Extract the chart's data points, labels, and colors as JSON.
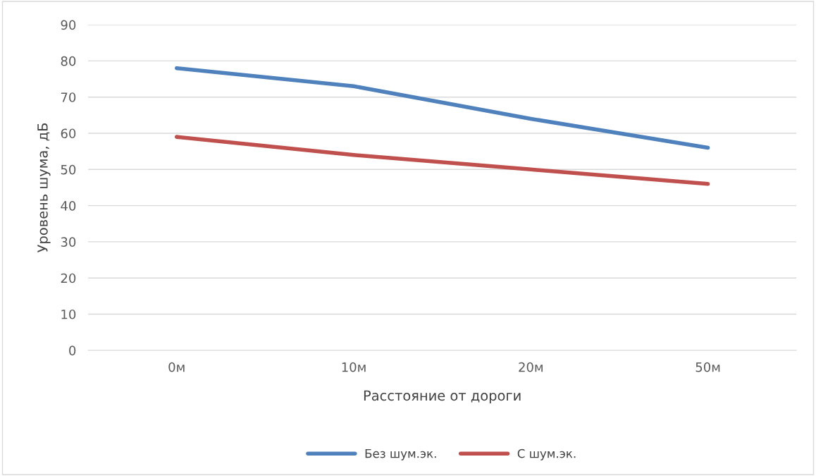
{
  "chart_data": {
    "type": "line",
    "xlabel": "Расстояние от дороги",
    "ylabel": "Уровень шума, дБ",
    "categories": [
      "0м",
      "10м",
      "20м",
      "50м"
    ],
    "series": [
      {
        "name": "Без шум.эк.",
        "color": "#4f81bd",
        "values": [
          78,
          73,
          64,
          56
        ]
      },
      {
        "name": "С шум.эк.",
        "color": "#c0504d",
        "values": [
          59,
          54,
          50,
          46
        ]
      }
    ],
    "ylim": [
      0,
      90
    ],
    "yticks": [
      0,
      10,
      20,
      30,
      40,
      50,
      60,
      70,
      80,
      90
    ],
    "grid": "y",
    "legend": "bottom",
    "marker": "none",
    "line_style": "solid"
  }
}
